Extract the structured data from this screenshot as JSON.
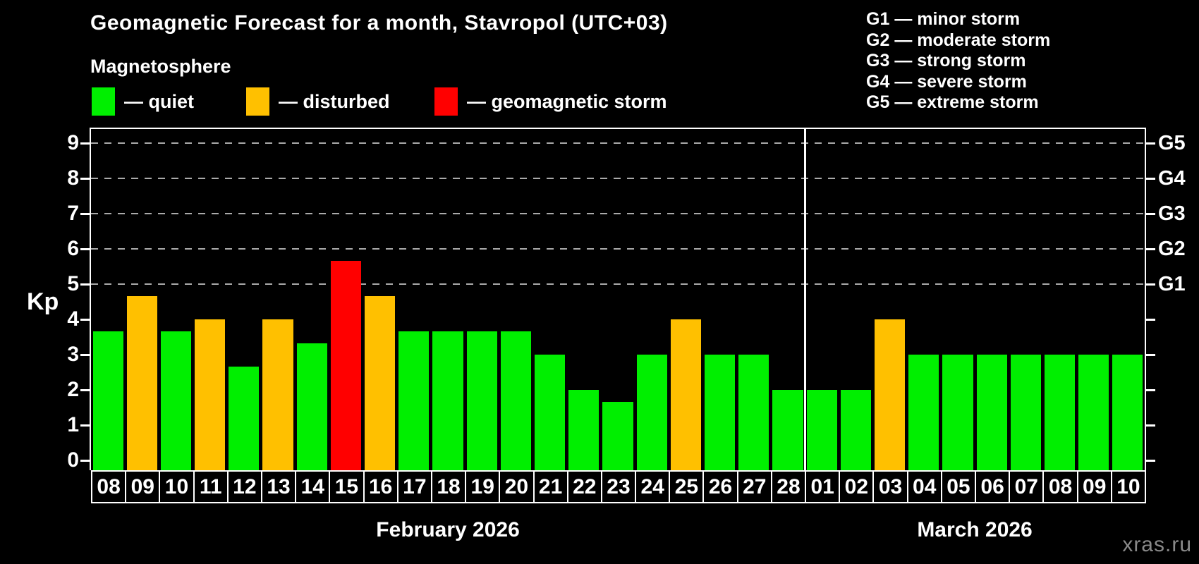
{
  "header": {
    "title": "Geomagnetic Forecast for a month, Stavropol (UTC+03)",
    "subtitle": "Magnetosphere",
    "legend": [
      {
        "label": "— quiet",
        "color": "#00ef00"
      },
      {
        "label": "— disturbed",
        "color": "#ffc000"
      },
      {
        "label": "— geomagnetic storm",
        "color": "#ff0000"
      }
    ],
    "storm_scale": [
      {
        "code": "G1",
        "label": "— minor storm"
      },
      {
        "code": "G2",
        "label": "— moderate storm"
      },
      {
        "code": "G3",
        "label": "— strong storm"
      },
      {
        "code": "G4",
        "label": "— severe storm"
      },
      {
        "code": "G5",
        "label": "— extreme storm"
      }
    ]
  },
  "chart_data": {
    "type": "bar",
    "title": "Geomagnetic Forecast for a month, Stavropol (UTC+03)",
    "xlabel": "",
    "ylabel": "Kp",
    "ylim": [
      0,
      9
    ],
    "yticks": [
      0,
      1,
      2,
      3,
      4,
      5,
      6,
      7,
      8,
      9
    ],
    "grid": "horizontal dashed lines at Kp 5-9",
    "legend_position": "top",
    "right_axis_labels": [
      {
        "label": "G1",
        "kp": 5
      },
      {
        "label": "G2",
        "kp": 6
      },
      {
        "label": "G3",
        "kp": 7
      },
      {
        "label": "G4",
        "kp": 8
      },
      {
        "label": "G5",
        "kp": 9
      }
    ],
    "categories": [
      "08",
      "09",
      "10",
      "11",
      "12",
      "13",
      "14",
      "15",
      "16",
      "17",
      "18",
      "19",
      "20",
      "21",
      "22",
      "23",
      "24",
      "25",
      "26",
      "27",
      "28",
      "01",
      "02",
      "03",
      "04",
      "05",
      "06",
      "07",
      "08",
      "09",
      "10"
    ],
    "values": [
      3.67,
      4.67,
      3.67,
      4,
      2.67,
      4,
      3.33,
      5.67,
      4.67,
      3.67,
      3.67,
      3.67,
      3.67,
      3,
      2,
      1.67,
      3,
      4,
      3,
      3,
      2,
      2,
      2,
      4,
      3,
      3,
      3,
      3,
      3,
      3,
      3
    ],
    "statuses": [
      "quiet",
      "disturbed",
      "quiet",
      "disturbed",
      "quiet",
      "disturbed",
      "quiet",
      "storm",
      "disturbed",
      "quiet",
      "quiet",
      "quiet",
      "quiet",
      "quiet",
      "quiet",
      "quiet",
      "quiet",
      "disturbed",
      "quiet",
      "quiet",
      "quiet",
      "quiet",
      "quiet",
      "disturbed",
      "quiet",
      "quiet",
      "quiet",
      "quiet",
      "quiet",
      "quiet",
      "quiet"
    ],
    "status_colors": {
      "quiet": "#00ef00",
      "disturbed": "#ffc000",
      "storm": "#ff0000"
    },
    "months": [
      {
        "label": "February 2026",
        "days": 21
      },
      {
        "label": "March 2026",
        "days": 10
      }
    ]
  },
  "watermark": "xras.ru"
}
